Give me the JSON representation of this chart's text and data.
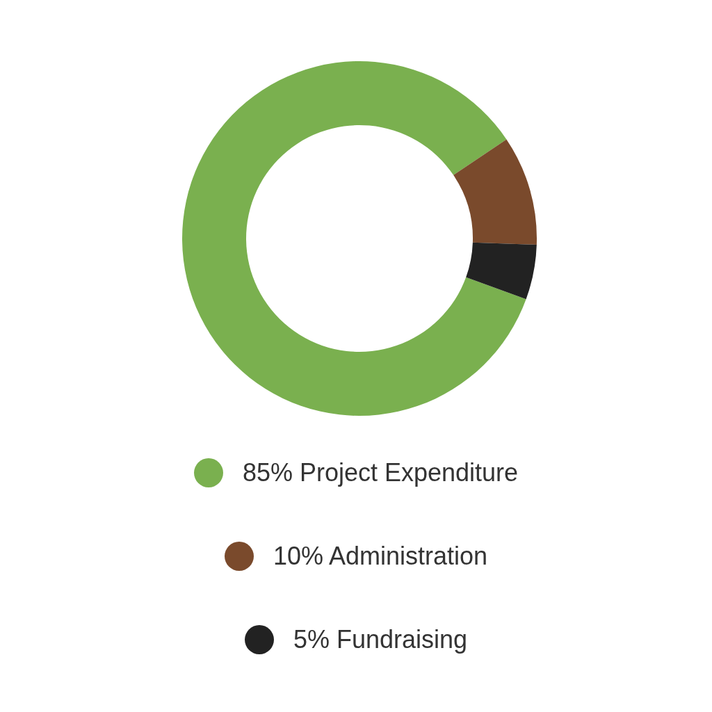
{
  "chart_data": {
    "type": "donut",
    "categories": [
      "85% Project Expenditure",
      "10% Administration",
      "5% Fundraising"
    ],
    "values": [
      85,
      10,
      5
    ],
    "colors": [
      "#7ab04f",
      "#7a4a2c",
      "#222222"
    ],
    "legend": "bottom"
  }
}
